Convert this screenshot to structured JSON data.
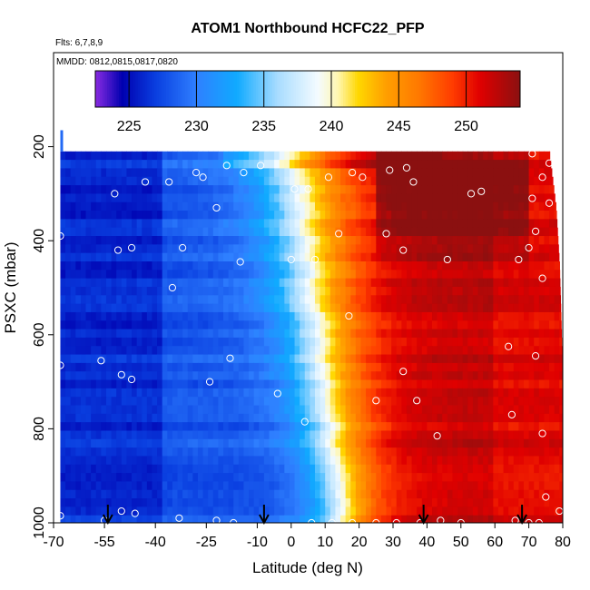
{
  "chart_data": {
    "type": "heatmap",
    "title": "ATOM1 Northbound HCFC22_PFP",
    "flights_note": "Flts: 6,7,8,9",
    "dates_note": "MMDD: 0812,0815,0817,0820",
    "xlabel": "Latitude (deg N)",
    "ylabel": "PSXC (mbar)",
    "xlim": [
      -70,
      80
    ],
    "ylim": [
      1000,
      0
    ],
    "x_ticks": [
      -70,
      -55,
      -40,
      -25,
      -10,
      0,
      10,
      20,
      30,
      40,
      50,
      60,
      70,
      80
    ],
    "y_ticks": [
      200,
      400,
      600,
      800,
      1000
    ],
    "colorbar": {
      "min": 222.5,
      "max": 254,
      "ticks": [
        225,
        230,
        235,
        240,
        245,
        250
      ],
      "stops": [
        {
          "v": 222.5,
          "c": "#8a2be2"
        },
        {
          "v": 224.5,
          "c": "#0000b0"
        },
        {
          "v": 227.0,
          "c": "#0a3fe0"
        },
        {
          "v": 230.0,
          "c": "#2f80ff"
        },
        {
          "v": 233.0,
          "c": "#10aaff"
        },
        {
          "v": 236.0,
          "c": "#a8dcff"
        },
        {
          "v": 239.0,
          "c": "#f4fbff"
        },
        {
          "v": 240.5,
          "c": "#fff6b0"
        },
        {
          "v": 242.0,
          "c": "#ffd700"
        },
        {
          "v": 244.0,
          "c": "#ffa000"
        },
        {
          "v": 246.5,
          "c": "#ff7800"
        },
        {
          "v": 249.0,
          "c": "#ff3c00"
        },
        {
          "v": 251.0,
          "c": "#e00000"
        },
        {
          "v": 254.0,
          "c": "#8b1010"
        }
      ]
    },
    "flight_latitudes_arrows": [
      -54,
      -8,
      39,
      68
    ],
    "field": {
      "top_pressure": 210,
      "bottom_pressure": 1000,
      "lat_min": -68,
      "lat_max_by_level": [
        [
          210,
          76
        ],
        [
          330,
          78
        ],
        [
          450,
          79
        ],
        [
          700,
          80
        ],
        [
          1000,
          80
        ]
      ]
    },
    "sample_points": [
      {
        "lat": -68,
        "p": 390
      },
      {
        "lat": -68,
        "p": 665
      },
      {
        "lat": -68,
        "p": 985
      },
      {
        "lat": -56,
        "p": 655
      },
      {
        "lat": -55,
        "p": 995
      },
      {
        "lat": -52,
        "p": 300
      },
      {
        "lat": -51,
        "p": 420
      },
      {
        "lat": -50,
        "p": 685
      },
      {
        "lat": -50,
        "p": 975
      },
      {
        "lat": -47,
        "p": 415
      },
      {
        "lat": -47,
        "p": 695
      },
      {
        "lat": -46,
        "p": 980
      },
      {
        "lat": -43,
        "p": 275
      },
      {
        "lat": -36,
        "p": 275
      },
      {
        "lat": -35,
        "p": 500
      },
      {
        "lat": -33,
        "p": 990
      },
      {
        "lat": -32,
        "p": 415
      },
      {
        "lat": -28,
        "p": 255
      },
      {
        "lat": -26,
        "p": 265
      },
      {
        "lat": -24,
        "p": 700
      },
      {
        "lat": -22,
        "p": 330
      },
      {
        "lat": -22,
        "p": 995
      },
      {
        "lat": -19,
        "p": 240
      },
      {
        "lat": -18,
        "p": 650
      },
      {
        "lat": -17,
        "p": 1000
      },
      {
        "lat": -15,
        "p": 445
      },
      {
        "lat": -14,
        "p": 255
      },
      {
        "lat": -9,
        "p": 240
      },
      {
        "lat": -4,
        "p": 725
      },
      {
        "lat": 0,
        "p": 440
      },
      {
        "lat": 1,
        "p": 290
      },
      {
        "lat": 4,
        "p": 785
      },
      {
        "lat": 5,
        "p": 290
      },
      {
        "lat": 6,
        "p": 1000
      },
      {
        "lat": 7,
        "p": 440
      },
      {
        "lat": 11,
        "p": 265
      },
      {
        "lat": 12,
        "p": 1000
      },
      {
        "lat": 14,
        "p": 385
      },
      {
        "lat": 17,
        "p": 560
      },
      {
        "lat": 18,
        "p": 255
      },
      {
        "lat": 18,
        "p": 1000
      },
      {
        "lat": 21,
        "p": 265
      },
      {
        "lat": 25,
        "p": 740
      },
      {
        "lat": 25,
        "p": 1000
      },
      {
        "lat": 28,
        "p": 385
      },
      {
        "lat": 29,
        "p": 250
      },
      {
        "lat": 31,
        "p": 1000
      },
      {
        "lat": 33,
        "p": 678
      },
      {
        "lat": 33,
        "p": 420
      },
      {
        "lat": 34,
        "p": 245
      },
      {
        "lat": 36,
        "p": 275
      },
      {
        "lat": 37,
        "p": 740
      },
      {
        "lat": 38,
        "p": 1000
      },
      {
        "lat": 43,
        "p": 815
      },
      {
        "lat": 44,
        "p": 995
      },
      {
        "lat": 46,
        "p": 440
      },
      {
        "lat": 50,
        "p": 1000
      },
      {
        "lat": 53,
        "p": 300
      },
      {
        "lat": 56,
        "p": 295
      },
      {
        "lat": 64,
        "p": 625
      },
      {
        "lat": 65,
        "p": 770
      },
      {
        "lat": 66,
        "p": 995
      },
      {
        "lat": 67,
        "p": 440
      },
      {
        "lat": 70,
        "p": 415
      },
      {
        "lat": 70,
        "p": 1000
      },
      {
        "lat": 71,
        "p": 215
      },
      {
        "lat": 71,
        "p": 310
      },
      {
        "lat": 72,
        "p": 380
      },
      {
        "lat": 72,
        "p": 645
      },
      {
        "lat": 73,
        "p": 1000
      },
      {
        "lat": 74,
        "p": 265
      },
      {
        "lat": 74,
        "p": 480
      },
      {
        "lat": 74,
        "p": 810
      },
      {
        "lat": 75,
        "p": 945
      },
      {
        "lat": 76,
        "p": 320
      },
      {
        "lat": 76,
        "p": 235
      },
      {
        "lat": 79,
        "p": 975
      }
    ]
  }
}
